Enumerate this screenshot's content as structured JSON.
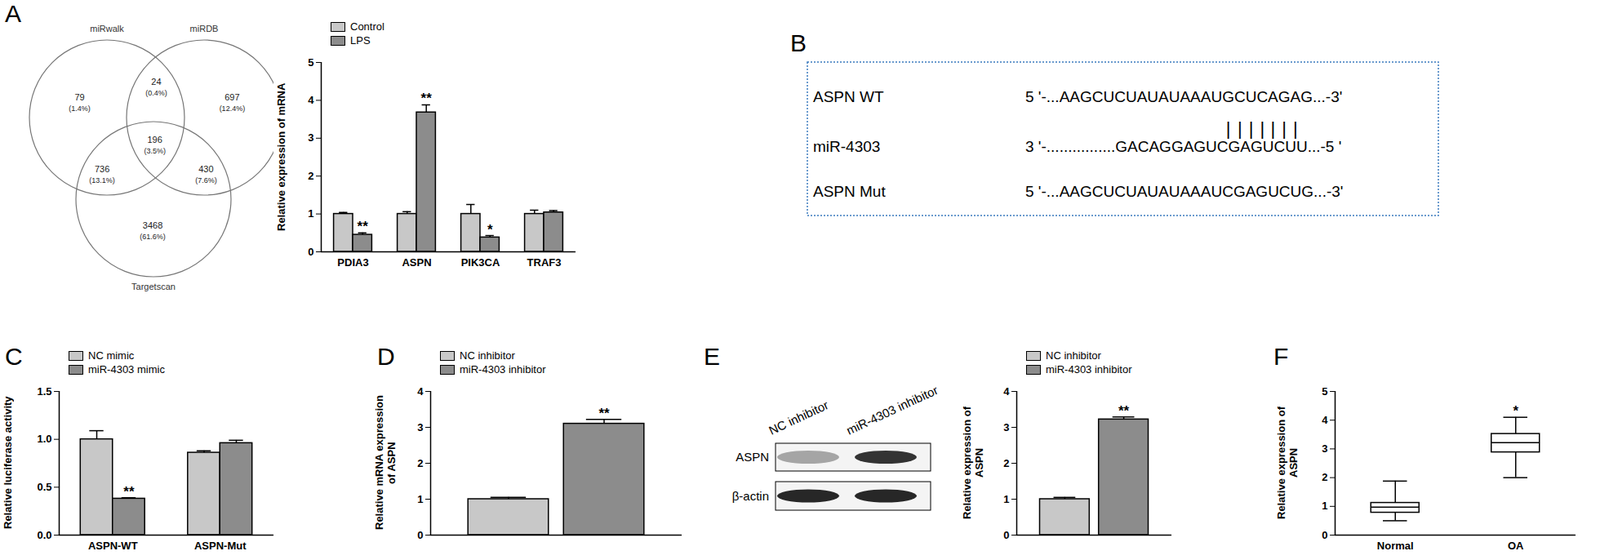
{
  "chart_data": [
    {
      "panel": "A",
      "type": "venn",
      "sets": [
        "miRwalk",
        "miRDB",
        "Targetscan"
      ],
      "regions": [
        {
          "sets": [
            "miRwalk"
          ],
          "count": 79,
          "label": "(1.4%)"
        },
        {
          "sets": [
            "miRwalk",
            "miRDB"
          ],
          "count": 24,
          "label": "(0.4%)"
        },
        {
          "sets": [
            "miRDB"
          ],
          "count": 697,
          "label": "(12.4%)"
        },
        {
          "sets": [
            "miRwalk",
            "miRDB",
            "Targetscan"
          ],
          "count": 196,
          "label": "(3.5%)"
        },
        {
          "sets": [
            "miRwalk",
            "Targetscan"
          ],
          "count": 736,
          "label": "(13.1%)"
        },
        {
          "sets": [
            "miRDB",
            "Targetscan"
          ],
          "count": 430,
          "label": "(7.6%)"
        },
        {
          "sets": [
            "Targetscan"
          ],
          "count": 3468,
          "label": "(61.6%)"
        }
      ]
    },
    {
      "panel": "A",
      "type": "bar",
      "ylabel": "Relative expression of mRNA",
      "categories": [
        "PDIA3",
        "ASPN",
        "PIK3CA",
        "TRAF3"
      ],
      "series": [
        {
          "name": "Control",
          "color": "#c8c8c8",
          "values": [
            1.0,
            1.0,
            1.0,
            1.0
          ],
          "errors": [
            0.04,
            0.06,
            0.25,
            0.1
          ]
        },
        {
          "name": "LPS",
          "color": "#8c8c8c",
          "values": [
            0.45,
            3.68,
            0.38,
            1.04
          ],
          "errors": [
            0.05,
            0.2,
            0.05,
            0.05
          ],
          "significance": [
            "**",
            "**",
            "*",
            null
          ]
        }
      ],
      "ylim": [
        0,
        5
      ],
      "yticks": [
        0,
        1,
        2,
        3,
        4,
        5
      ],
      "legend": "top-left"
    },
    {
      "panel": "B",
      "type": "sequence",
      "rows": [
        {
          "label": "ASPN WT",
          "sequence": "5 '-...AAGCUCUAUAUAAAUGCUCAGAG...-3'"
        },
        {
          "label": "miR-4303",
          "sequence": "3 '-................GACAGGAGUCGAGUCUU...-5 '"
        },
        {
          "label": "ASPN Mut",
          "sequence": "5 '-...AAGCUCUAUAUAAAUCGAGUCUG...-3'"
        }
      ],
      "pairing": "| | | | | | |"
    },
    {
      "panel": "C",
      "type": "bar",
      "ylabel": "Relative luciferase activity",
      "categories": [
        "ASPN-WT",
        "ASPN-Mut"
      ],
      "series": [
        {
          "name": "NC mimic",
          "color": "#c8c8c8",
          "values": [
            1.0,
            0.86
          ],
          "errors": [
            0.09,
            0.02
          ]
        },
        {
          "name": "miR-4303 mimic",
          "color": "#8c8c8c",
          "values": [
            0.38,
            0.96
          ],
          "errors": [
            0.01,
            0.03
          ],
          "significance": [
            "**",
            null
          ]
        }
      ],
      "ylim": [
        0,
        1.5
      ],
      "yticks": [
        {
          "value": 0,
          "label": "0.0"
        },
        {
          "value": 0.5,
          "label": "0.5"
        },
        {
          "value": 1,
          "label": "1.0"
        },
        {
          "value": 1.5,
          "label": "1.5"
        }
      ],
      "legend": "top-left"
    },
    {
      "panel": "D",
      "type": "bar",
      "ylabel": "Relative mRNA expression of ASPN",
      "categories": [
        null
      ],
      "series": [
        {
          "name": "NC inhibitor",
          "color": "#c8c8c8",
          "values": [
            1.0
          ],
          "errors": [
            0.05
          ]
        },
        {
          "name": "miR-4303 inhibitor",
          "color": "#8c8c8c",
          "values": [
            3.1
          ],
          "errors": [
            0.12
          ],
          "significance": [
            "**"
          ]
        }
      ],
      "ylim": [
        0,
        4
      ],
      "yticks": [
        0,
        1,
        2,
        3,
        4
      ],
      "legend": "top-left",
      "tick_labels": "y"
    },
    {
      "panel": "E",
      "type": "blot",
      "lanes": [
        "NC inhibitor",
        "miR-4303 inhibitor"
      ],
      "bands": [
        {
          "label": "ASPN",
          "intensity": [
            0.35,
            0.85
          ]
        },
        {
          "label": "β-actin",
          "intensity": [
            0.9,
            0.9
          ]
        }
      ]
    },
    {
      "panel": "E",
      "type": "bar",
      "ylabel": "Relative expression of ASPN",
      "categories": [
        null
      ],
      "series": [
        {
          "name": "NC inhibitor",
          "color": "#c8c8c8",
          "values": [
            1.0
          ],
          "errors": [
            0.05
          ]
        },
        {
          "name": "miR-4303 inhibitor",
          "color": "#8c8c8c",
          "values": [
            3.22
          ],
          "errors": [
            0.07
          ],
          "significance": [
            "**"
          ]
        }
      ],
      "ylim": [
        0,
        4
      ],
      "yticks": [
        0,
        1,
        2,
        3,
        4
      ],
      "legend": "top-left",
      "tick_labels": "y"
    },
    {
      "panel": "F",
      "type": "box",
      "ylabel": "Relative expression of ASPN",
      "categories": [
        "Normal",
        "OA"
      ],
      "min": [
        0.5,
        2.0
      ],
      "q1": [
        0.78,
        2.88
      ],
      "median": [
        0.97,
        3.22
      ],
      "q3": [
        1.12,
        3.52
      ],
      "max": [
        1.88,
        4.1
      ],
      "significance": [
        null,
        "*"
      ],
      "color": "#ffffff",
      "ylim": [
        0,
        5
      ],
      "yticks": [
        0,
        1,
        2,
        3,
        4,
        5
      ]
    }
  ]
}
